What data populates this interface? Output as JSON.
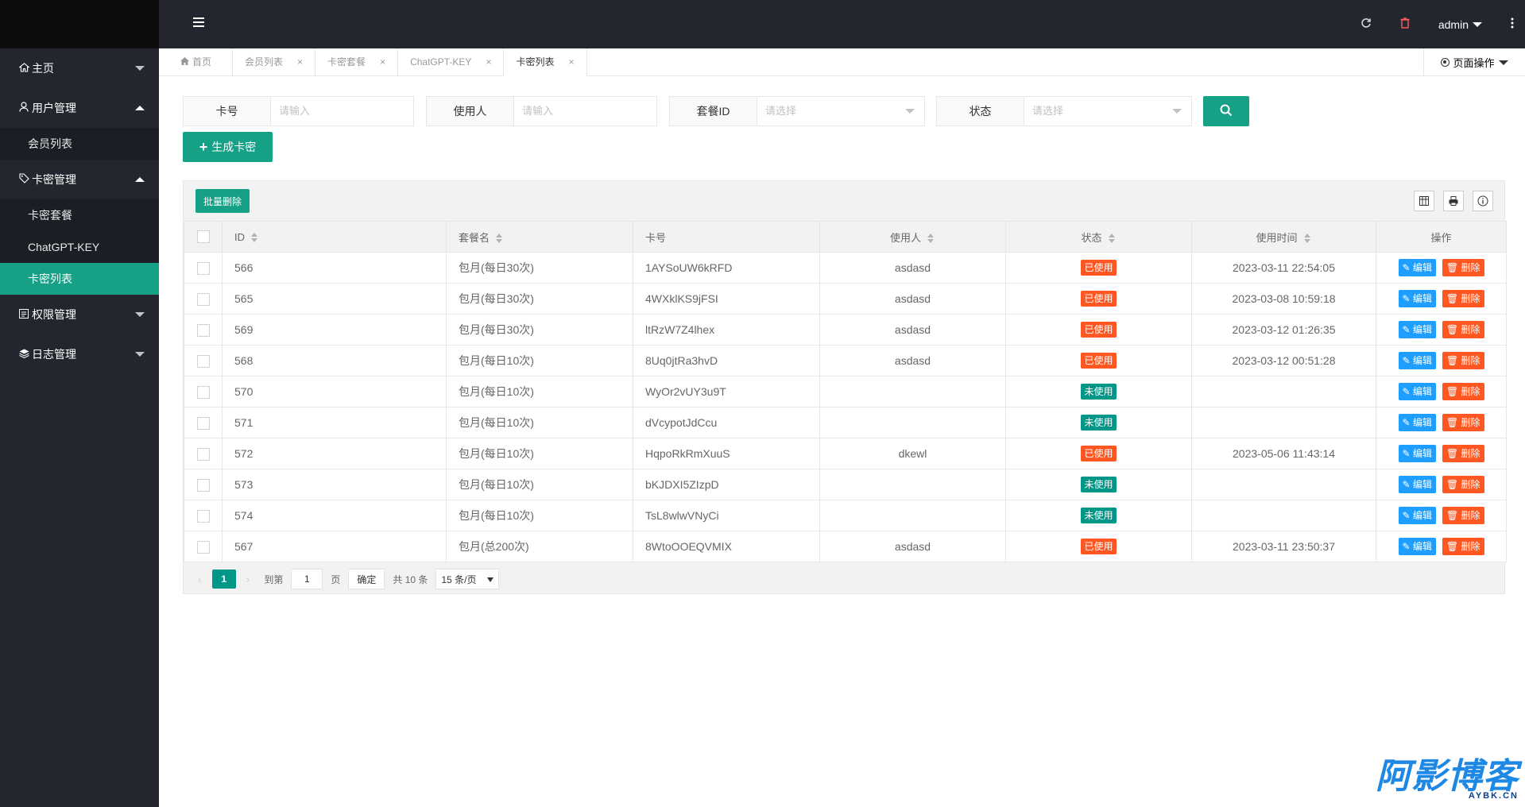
{
  "sidebar": {
    "groups": [
      {
        "icon": "home-icon",
        "label": "主页",
        "expanded": false,
        "items": []
      },
      {
        "icon": "user-icon",
        "label": "用户管理",
        "expanded": true,
        "items": [
          {
            "label": "会员列表",
            "active": false
          }
        ]
      },
      {
        "icon": "tag-icon",
        "label": "卡密管理",
        "expanded": true,
        "items": [
          {
            "label": "卡密套餐",
            "active": false
          },
          {
            "label": "ChatGPT-KEY",
            "active": false
          },
          {
            "label": "卡密列表",
            "active": true
          }
        ]
      },
      {
        "icon": "permission-icon",
        "label": "权限管理",
        "expanded": false,
        "items": []
      },
      {
        "icon": "log-icon",
        "label": "日志管理",
        "expanded": false,
        "items": []
      }
    ]
  },
  "header": {
    "user": "admin"
  },
  "tabs": {
    "home": "首页",
    "items": [
      {
        "label": "会员列表",
        "active": false
      },
      {
        "label": "卡密套餐",
        "active": false
      },
      {
        "label": "ChatGPT-KEY",
        "active": false
      },
      {
        "label": "卡密列表",
        "active": true
      }
    ],
    "close_glyph": "×",
    "page_ops": "页面操作"
  },
  "filters": {
    "card": {
      "label": "卡号",
      "placeholder": "请输入"
    },
    "user": {
      "label": "使用人",
      "placeholder": "请输入"
    },
    "package": {
      "label": "套餐ID",
      "placeholder": "请选择"
    },
    "status": {
      "label": "状态",
      "placeholder": "请选择"
    }
  },
  "actions": {
    "generate": "生成卡密",
    "batch_delete": "批量删除"
  },
  "table": {
    "columns": [
      "ID",
      "套餐名",
      "卡号",
      "使用人",
      "状态",
      "使用时间",
      "操作"
    ],
    "edit_label": "编辑",
    "delete_label": "删除",
    "rows": [
      {
        "id": "566",
        "package": "包月(每日30次)",
        "card": "1AYSoUW6kRFD",
        "user": "asdasd",
        "status": "已使用",
        "used": true,
        "time": "2023-03-11 22:54:05"
      },
      {
        "id": "565",
        "package": "包月(每日30次)",
        "card": "4WXklKS9jFSI",
        "user": "asdasd",
        "status": "已使用",
        "used": true,
        "time": "2023-03-08 10:59:18"
      },
      {
        "id": "569",
        "package": "包月(每日30次)",
        "card": "ltRzW7Z4lhex",
        "user": "asdasd",
        "status": "已使用",
        "used": true,
        "time": "2023-03-12 01:26:35"
      },
      {
        "id": "568",
        "package": "包月(每日10次)",
        "card": "8Uq0jtRa3hvD",
        "user": "asdasd",
        "status": "已使用",
        "used": true,
        "time": "2023-03-12 00:51:28"
      },
      {
        "id": "570",
        "package": "包月(每日10次)",
        "card": "WyOr2vUY3u9T",
        "user": "",
        "status": "未使用",
        "used": false,
        "time": ""
      },
      {
        "id": "571",
        "package": "包月(每日10次)",
        "card": "dVcypotJdCcu",
        "user": "",
        "status": "未使用",
        "used": false,
        "time": ""
      },
      {
        "id": "572",
        "package": "包月(每日10次)",
        "card": "HqpoRkRmXuuS",
        "user": "dkewl",
        "status": "已使用",
        "used": true,
        "time": "2023-05-06 11:43:14"
      },
      {
        "id": "573",
        "package": "包月(每日10次)",
        "card": "bKJDXI5ZIzpD",
        "user": "",
        "status": "未使用",
        "used": false,
        "time": ""
      },
      {
        "id": "574",
        "package": "包月(每日10次)",
        "card": "TsL8wlwVNyCi",
        "user": "",
        "status": "未使用",
        "used": false,
        "time": ""
      },
      {
        "id": "567",
        "package": "包月(总200次)",
        "card": "8WtoOOEQVMIX",
        "user": "asdasd",
        "status": "已使用",
        "used": true,
        "time": "2023-03-11 23:50:37"
      }
    ]
  },
  "pager": {
    "current": "1",
    "goto_label": "到第",
    "goto_value": "1",
    "page_label": "页",
    "confirm": "确定",
    "total": "共 10 条",
    "page_size": "15 条/页"
  },
  "watermark": {
    "main": "阿影博客",
    "sub": "AYBK.CN"
  },
  "colors": {
    "sidebar_bg": "#23262e",
    "accent": "#16a085",
    "used_badge": "#ff5722",
    "unused_badge": "#009688",
    "edit_btn": "#1e9fff"
  }
}
